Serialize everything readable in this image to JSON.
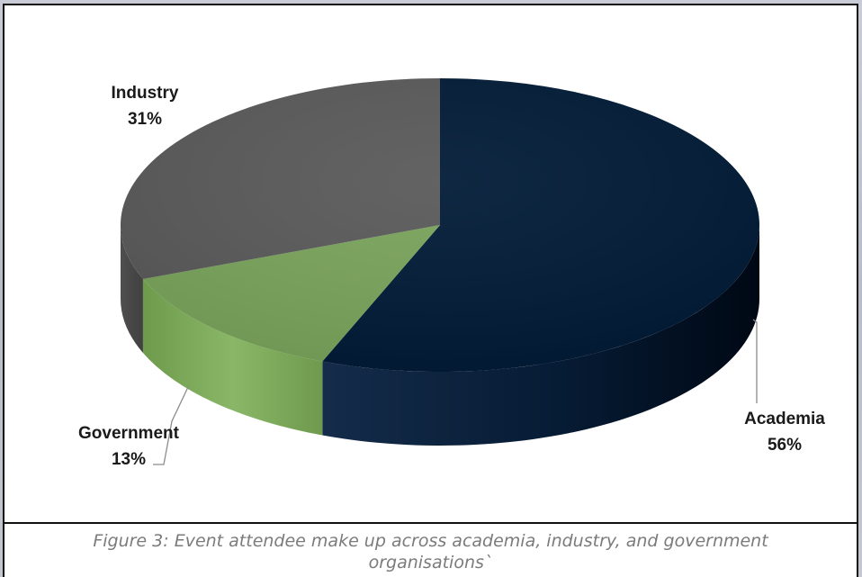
{
  "chart_data": {
    "type": "pie",
    "style": "3d",
    "slices": [
      {
        "label": "Academia",
        "value": 56,
        "value_text": "56%",
        "color": "#001a36"
      },
      {
        "label": "Government",
        "value": 13,
        "value_text": "13%",
        "color": "#79a35a"
      },
      {
        "label": "Industry",
        "value": 31,
        "value_text": "31%",
        "color": "#595959"
      }
    ]
  },
  "caption": {
    "line1": "Figure 3: Event attendee make up across academia, industry, and government",
    "line2": "organisations`"
  }
}
